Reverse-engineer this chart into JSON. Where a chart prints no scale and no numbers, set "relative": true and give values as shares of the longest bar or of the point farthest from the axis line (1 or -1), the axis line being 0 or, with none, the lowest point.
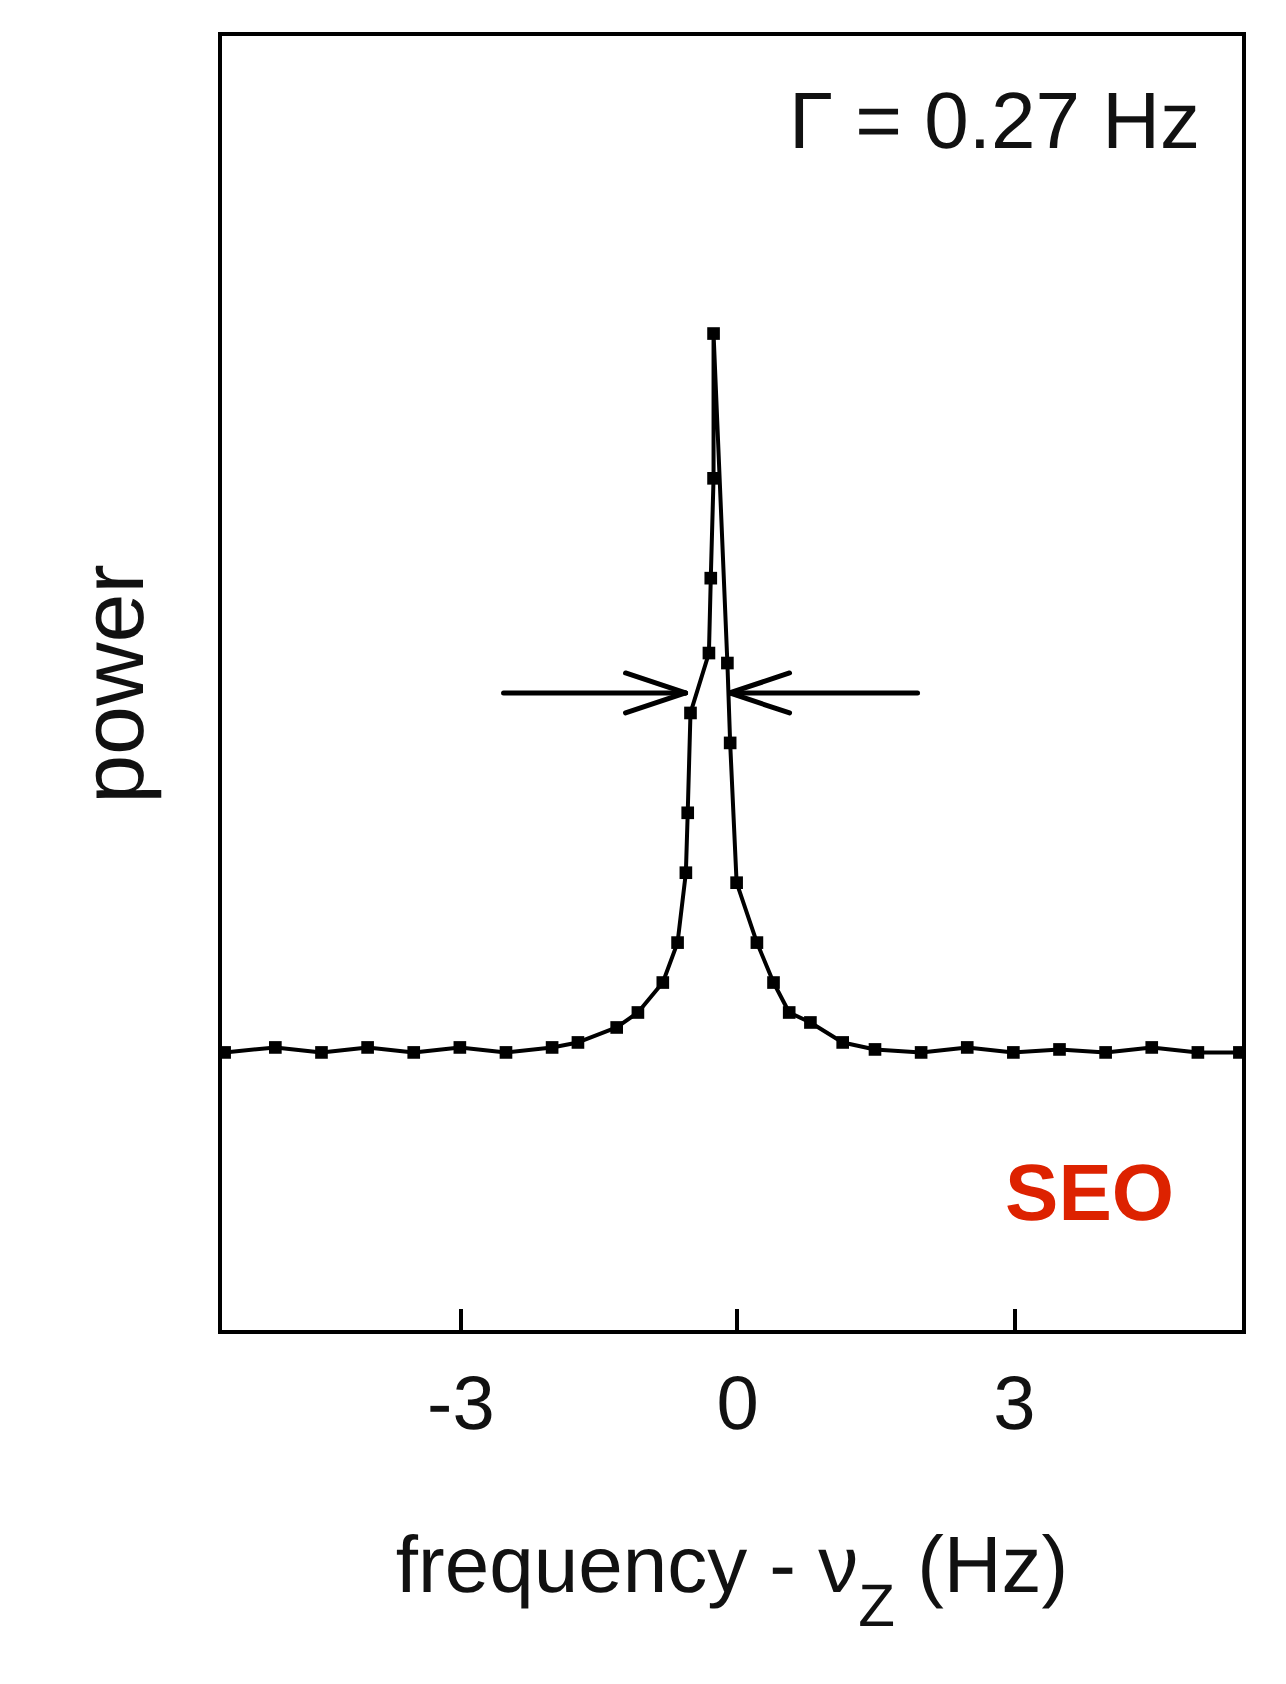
{
  "chart_data": {
    "type": "line",
    "relative": true,
    "xlabel": "frequency - ν$_{Z}$ (Hz)",
    "ylabel": "power",
    "xlim": [
      -5.6,
      5.5
    ],
    "xticks": [
      -3,
      0,
      3
    ],
    "marker": "square",
    "grid": false,
    "annotations": [
      "Γ = 0.27 Hz",
      "SEO"
    ],
    "x": [
      -5.55,
      -5,
      -4.5,
      -4,
      -3.5,
      -3,
      -2.5,
      -2,
      -1.72,
      -1.3,
      -1.07,
      -0.8,
      -0.64,
      -0.55,
      -0.53,
      -0.5,
      -0.3,
      -0.28,
      -0.25,
      -0.25,
      -0.1,
      -0.07,
      0.0,
      0.22,
      0.4,
      0.57,
      0.8,
      1.15,
      1.5,
      2,
      2.5,
      3,
      3.5,
      4,
      4.5,
      5,
      5.45
    ],
    "series": [
      {
        "color": "#000000",
        "values": [
          0.28,
          0.285,
          0.28,
          0.285,
          0.28,
          0.285,
          0.28,
          0.285,
          0.29,
          0.305,
          0.32,
          0.35,
          0.39,
          0.46,
          0.52,
          0.62,
          0.68,
          0.755,
          0.855,
          1.0,
          0.67,
          0.59,
          0.45,
          0.39,
          0.35,
          0.32,
          0.31,
          0.29,
          0.283,
          0.28,
          0.285,
          0.28,
          0.283,
          0.28,
          0.285,
          0.28,
          0.28
        ]
      }
    ]
  }
}
